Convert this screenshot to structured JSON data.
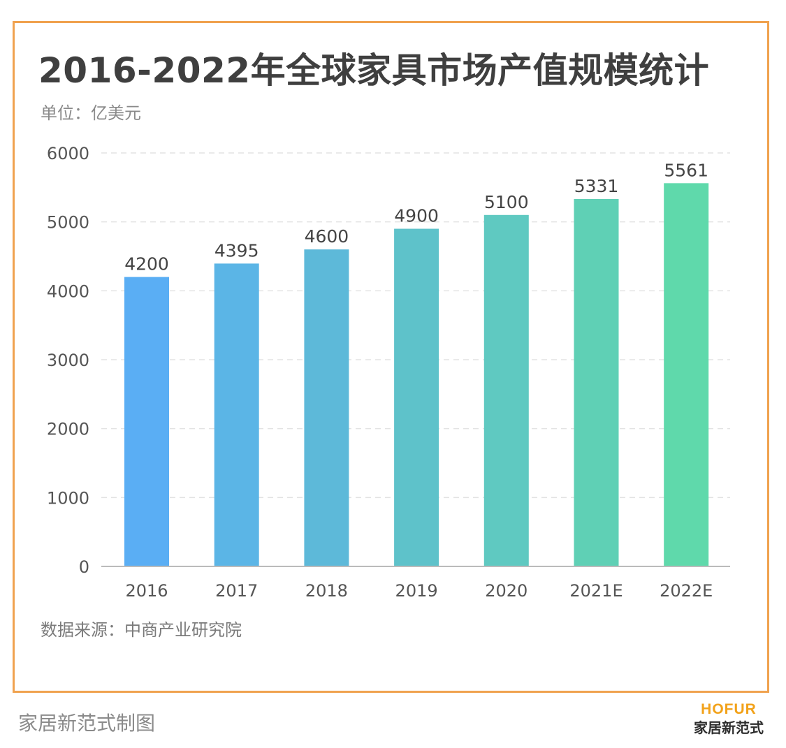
{
  "title": "2016-2022年全球家具市场产值规模统计",
  "unit": "单位：亿美元",
  "source": "数据来源：中商产业研究院",
  "credit": "家居新范式制图",
  "logo": {
    "brand": "HOFUR",
    "name": "家居新范式"
  },
  "colors": {
    "border": "#f0a24f",
    "bars": [
      "#5aaef4",
      "#5bb5e6",
      "#5db9d9",
      "#5ec2ca",
      "#5fc9c1",
      "#5fd0b5",
      "#5fd9ab"
    ]
  },
  "chart_data": {
    "type": "bar",
    "categories": [
      "2016",
      "2017",
      "2018",
      "2019",
      "2020",
      "2021E",
      "2022E"
    ],
    "values": [
      4200,
      4395,
      4600,
      4900,
      5100,
      5331,
      5561
    ],
    "ylim": [
      0,
      6000
    ],
    "yticks": [
      0,
      1000,
      2000,
      3000,
      4000,
      5000,
      6000
    ],
    "grid": true,
    "legend": "none"
  }
}
